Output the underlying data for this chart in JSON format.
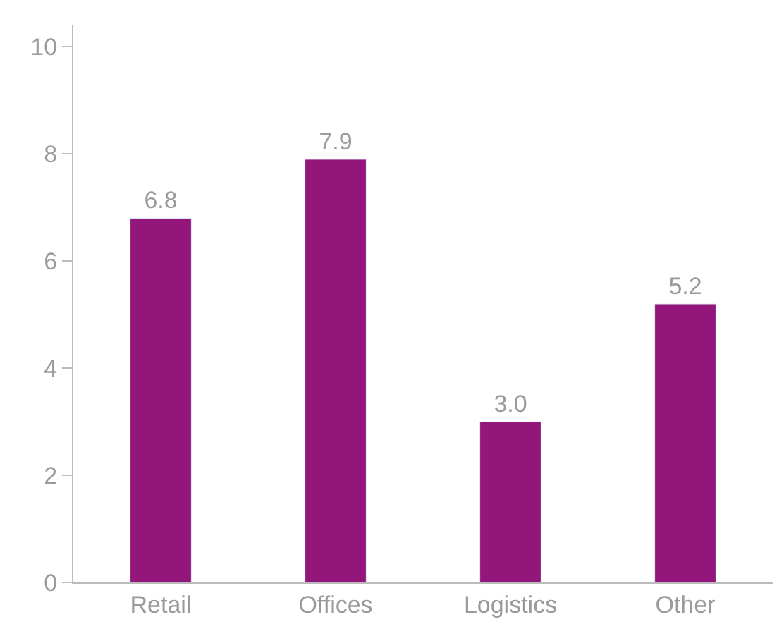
{
  "chart_data": {
    "type": "bar",
    "categories": [
      "Retail",
      "Offices",
      "Logistics",
      "Other"
    ],
    "values": [
      6.8,
      7.9,
      3.0,
      5.2
    ],
    "value_labels": [
      "6.8",
      "7.9",
      "3.0",
      "5.2"
    ],
    "color": "#93177b",
    "ylim": [
      0,
      10.4
    ],
    "yticks": [
      0,
      2,
      4,
      6,
      8,
      10
    ]
  }
}
